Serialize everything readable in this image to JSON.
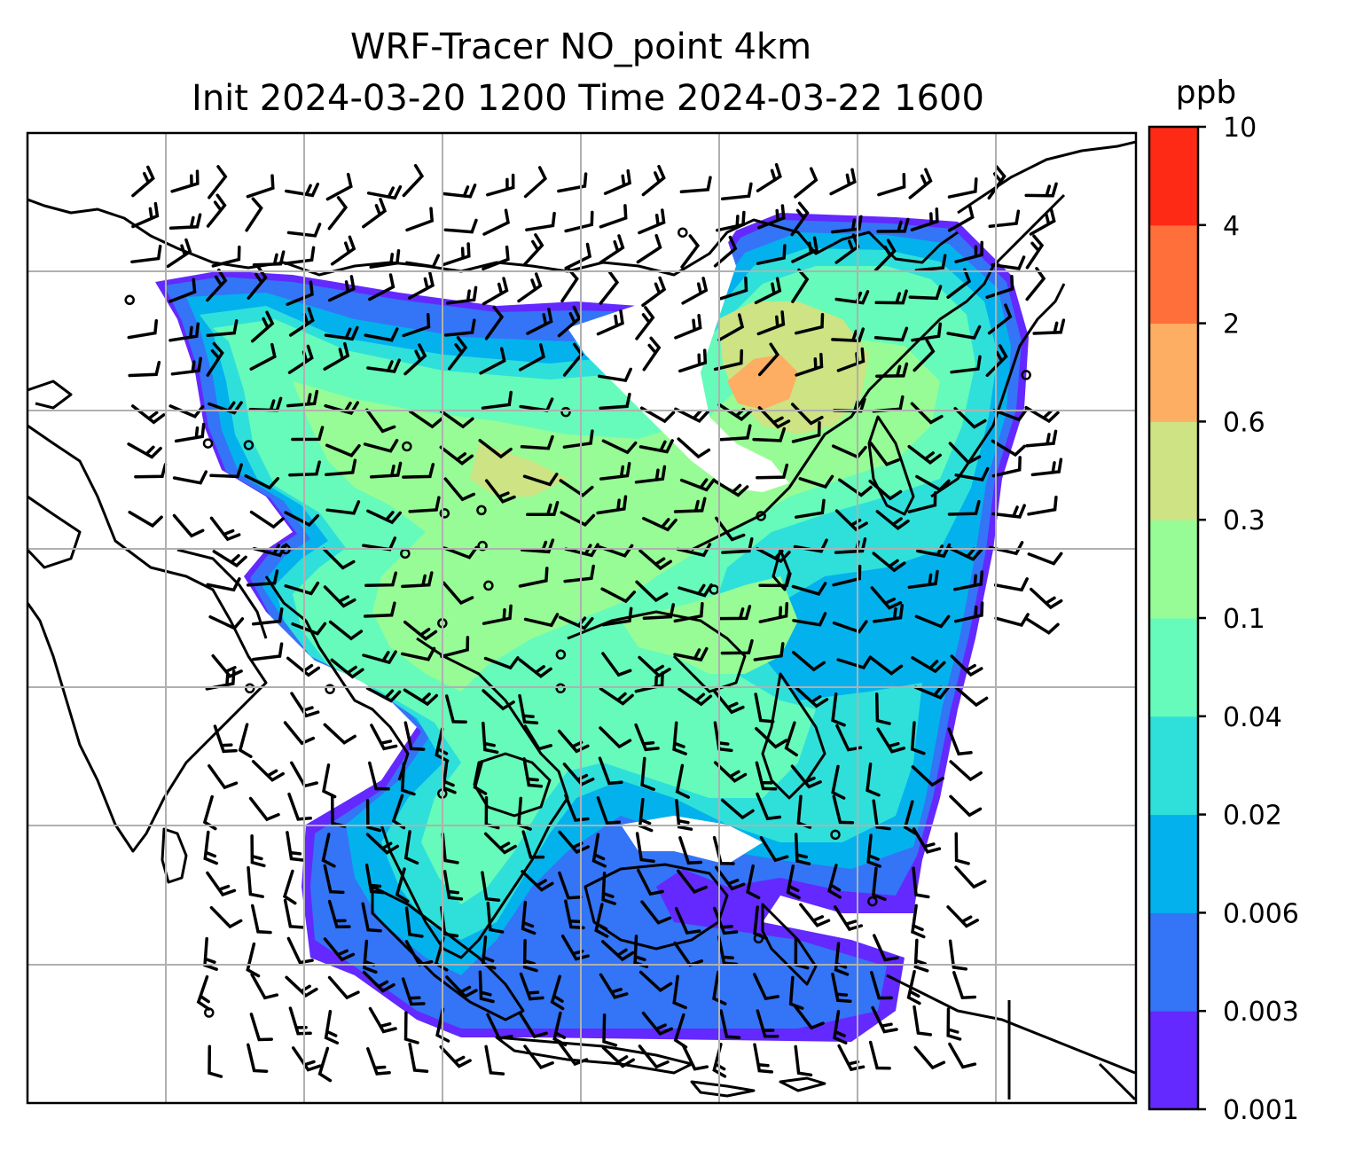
{
  "title": {
    "line1": "WRF-Tracer NO_point 4km",
    "line2": "Init 2024-03-20 1200 Time 2024-03-22 1600"
  },
  "colorbar": {
    "unit": "ppb",
    "levels": [
      "0.001",
      "0.003",
      "0.006",
      "0.02",
      "0.04",
      "0.1",
      "0.3",
      "0.6",
      "2",
      "4",
      "10"
    ],
    "colors": [
      "#6329ff",
      "#3474f6",
      "#03b2ec",
      "#2fe0da",
      "#66fbba",
      "#97fc95",
      "#cde384",
      "#fdae62",
      "#ff6f3a",
      "#ff2a16"
    ]
  },
  "map": {
    "gridlines": true,
    "grid_color": "#b0b0b0",
    "coastline_color": "#000000",
    "barb_color": "#000000"
  }
}
